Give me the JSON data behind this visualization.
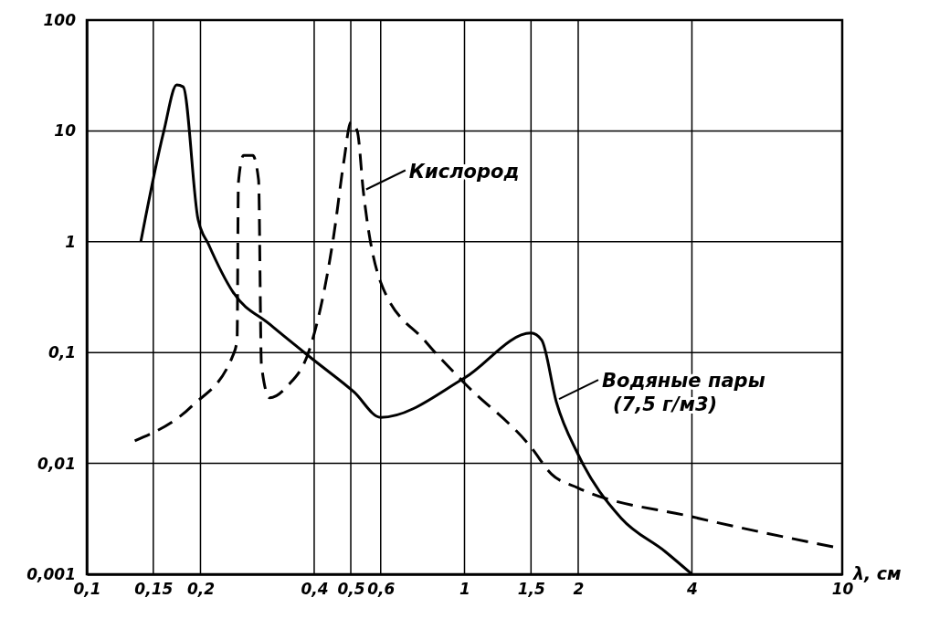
{
  "chart_data": {
    "type": "line",
    "xlabel": "λ, см",
    "log": "xy",
    "grid": true,
    "marker": "none",
    "xlim": [
      0.1,
      10
    ],
    "ylim": [
      0.001,
      100
    ],
    "xticks": [
      {
        "value": 0.1,
        "label": "0,1"
      },
      {
        "value": 0.15,
        "label": "0,15"
      },
      {
        "value": 0.2,
        "label": "0,2"
      },
      {
        "value": 0.4,
        "label": "0,4"
      },
      {
        "value": 0.5,
        "label": "0,5"
      },
      {
        "value": 0.6,
        "label": "0,6"
      },
      1,
      {
        "value": 1.5,
        "label": "1,5"
      },
      2,
      4,
      10
    ],
    "yticks": [
      {
        "value": 0.001,
        "label": "0,001"
      },
      {
        "value": 0.01,
        "label": "0,01"
      },
      {
        "value": 0.1,
        "label": "0,1"
      },
      1,
      10,
      100
    ],
    "annotations": [
      {
        "text": "Водяные пары (7,5 г/м3)",
        "x": 1.75,
        "y": 0.036
      },
      {
        "text": "Кислород",
        "x": 0.54,
        "y": 2.8
      }
    ],
    "series": [
      {
        "color": "#000000",
        "line_style": "solid",
        "x": [
          0.139,
          0.16,
          0.173,
          0.18,
          0.197,
          0.21,
          0.244,
          0.305,
          0.4,
          0.51,
          0.6,
          1,
          1.5,
          1.6,
          1.75,
          2,
          2.6,
          3.4,
          4
        ],
        "values": [
          1.0,
          10,
          26,
          25,
          1.6,
          0.95,
          0.35,
          0.18,
          0.085,
          0.044,
          0.026,
          0.059,
          0.15,
          0.13,
          0.036,
          0.012,
          0.0032,
          0.0016,
          0.001
        ]
      },
      {
        "color": "#000000",
        "line_style": "dashed",
        "x": [
          0.134,
          0.19,
          0.244,
          0.25,
          0.252,
          0.26,
          0.275,
          0.285,
          0.29,
          0.305,
          0.34,
          0.39,
          0.45,
          0.48,
          0.5,
          0.52,
          0.54,
          0.6,
          0.79,
          1,
          1.5,
          1.7,
          2,
          4,
          10
        ],
        "values": [
          0.016,
          0.033,
          0.095,
          0.13,
          3.4,
          6.0,
          6.0,
          3.6,
          0.077,
          0.039,
          0.05,
          0.11,
          1.1,
          5.5,
          12,
          10,
          2.8,
          0.43,
          0.125,
          0.053,
          0.014,
          0.008,
          0.006,
          0.0033,
          0.0017
        ]
      }
    ]
  }
}
